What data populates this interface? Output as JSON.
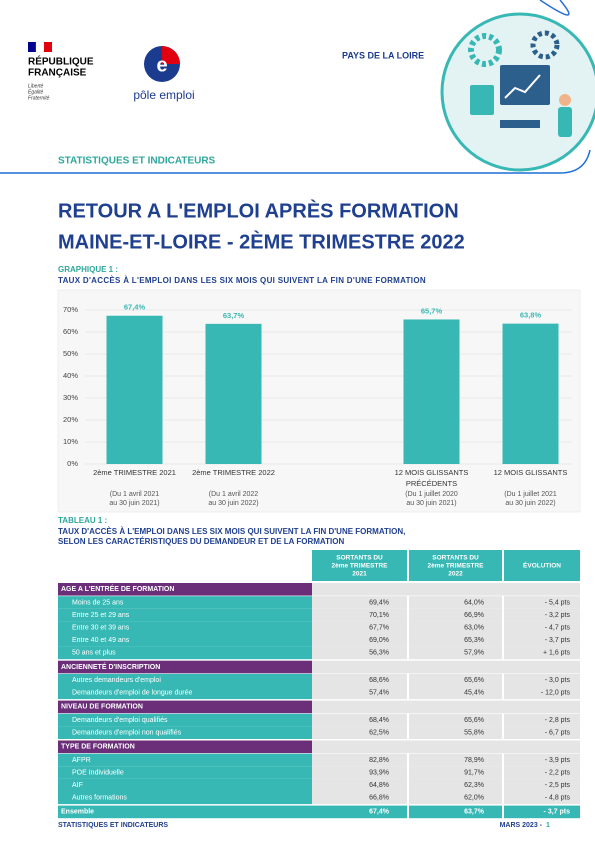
{
  "header": {
    "republique": [
      "RÉPUBLIQUE",
      "FRANÇAISE"
    ],
    "motto": [
      "Liberté",
      "Égalité",
      "Fraternité"
    ],
    "pole_emploi": "pôle emploi",
    "region": "PAYS DE LA LOIRE",
    "section": "STATISTIQUES ET INDICATEURS"
  },
  "title": [
    "RETOUR A L'EMPLOI APRÈS  FORMATION",
    "MAINE-ET-LOIRE -  2ÈME TRIMESTRE 2022"
  ],
  "chart": {
    "type": "bar",
    "label": "GRAPHIQUE 1 :",
    "title": "TAUX D'ACCÈS À L'EMPLOI DANS LES SIX MOIS QUI SUIVENT LA FIN D'UNE FORMATION",
    "categories": [
      [
        "2ème TRIMESTRE 2021"
      ],
      [
        "2ème TRIMESTRE 2022"
      ],
      null,
      [
        "12 MOIS GLISSANTS",
        "PRÉCÉDENTS"
      ],
      [
        "12 MOIS GLISSANTS"
      ]
    ],
    "periods": [
      [
        "(Du 1 avril 2021",
        "au 30 juin 2021)"
      ],
      [
        "(Du 1 avril 2022",
        "au 30 juin 2022)"
      ],
      null,
      [
        "(Du 1 juillet 2020",
        "au 30 juin 2021)"
      ],
      [
        "(Du 1 juillet 2021",
        "au 30 juin 2022)"
      ]
    ],
    "values": [
      67.4,
      63.7,
      null,
      65.7,
      63.8
    ],
    "value_labels": [
      "67,4%",
      "63,7%",
      null,
      "65,7%",
      "63,8%"
    ],
    "color": "#37b8b4",
    "ylim": [
      0,
      70
    ],
    "yticks": [
      {
        "value": 0,
        "label": "0%"
      },
      {
        "value": 10,
        "label": "10%"
      },
      {
        "value": 20,
        "label": "20%"
      },
      {
        "value": 30,
        "label": "30%"
      },
      {
        "value": 40,
        "label": "40%"
      },
      {
        "value": 50,
        "label": "50%"
      },
      {
        "value": 60,
        "label": "60%"
      },
      {
        "value": 70,
        "label": "70%"
      }
    ],
    "grid": true
  },
  "table": {
    "label": "TABLEAU 1 :",
    "title": [
      "TAUX D'ACCÈS À L'EMPLOI DANS LES SIX MOIS QUI SUIVENT LA FIN D'UNE FORMATION,",
      "SELON LES CARACTÉRISTIQUES DU DEMANDEUR ET DE LA FORMATION"
    ],
    "columns": [
      [
        "SORTANTS DU",
        "2ème TRIMESTRE",
        "2021"
      ],
      [
        "SORTANTS DU",
        "2ème TRIMESTRE",
        "2022"
      ],
      [
        "ÉVOLUTION"
      ]
    ],
    "sections": [
      {
        "title": "AGE A L'ENTRÉE DE FORMATION",
        "rows": [
          [
            "Moins de 25 ans",
            "69,4%",
            "64,0%",
            "- 5,4 pts"
          ],
          [
            "Entre 25 et 29 ans",
            "70,1%",
            "66,9%",
            "- 3,2 pts"
          ],
          [
            "Entre 30 et 39 ans",
            "67,7%",
            "63,0%",
            "- 4,7 pts"
          ],
          [
            "Entre 40 et 49 ans",
            "69,0%",
            "65,3%",
            "- 3,7 pts"
          ],
          [
            "50 ans et plus",
            "56,3%",
            "57,9%",
            "+ 1,6 pts"
          ]
        ]
      },
      {
        "title": "ANCIENNETÉ D'INSCRIPTION",
        "rows": [
          [
            "Autres demandeurs d'emploi",
            "68,6%",
            "65,6%",
            "- 3,0 pts"
          ],
          [
            "Demandeurs d'emploi de longue durée",
            "57,4%",
            "45,4%",
            "- 12,0 pts"
          ]
        ]
      },
      {
        "title": "NIVEAU DE FORMATION",
        "rows": [
          [
            "Demandeurs d'emploi qualifiés",
            "68,4%",
            "65,6%",
            "- 2,8 pts"
          ],
          [
            "Demandeurs d'emploi non qualifiés",
            "62,5%",
            "55,8%",
            "- 6,7 pts"
          ]
        ]
      },
      {
        "title": "TYPE DE FORMATION",
        "rows": [
          [
            "AFPR",
            "82,8%",
            "78,9%",
            "- 3,9 pts"
          ],
          [
            "POE Individuelle",
            "93,9%",
            "91,7%",
            "- 2,2 pts"
          ],
          [
            "AIF",
            "64,8%",
            "62,3%",
            "- 2,5 pts"
          ],
          [
            "Autres formations",
            "66,8%",
            "62,0%",
            "- 4,8 pts"
          ]
        ]
      }
    ],
    "total": [
      "Ensemble",
      "67,4%",
      "63,7%",
      "- 3,7 pts"
    ]
  },
  "footer": {
    "left": "STATISTIQUES ET INDICATEURS",
    "date": "MARS 2023 -",
    "page": "1"
  }
}
